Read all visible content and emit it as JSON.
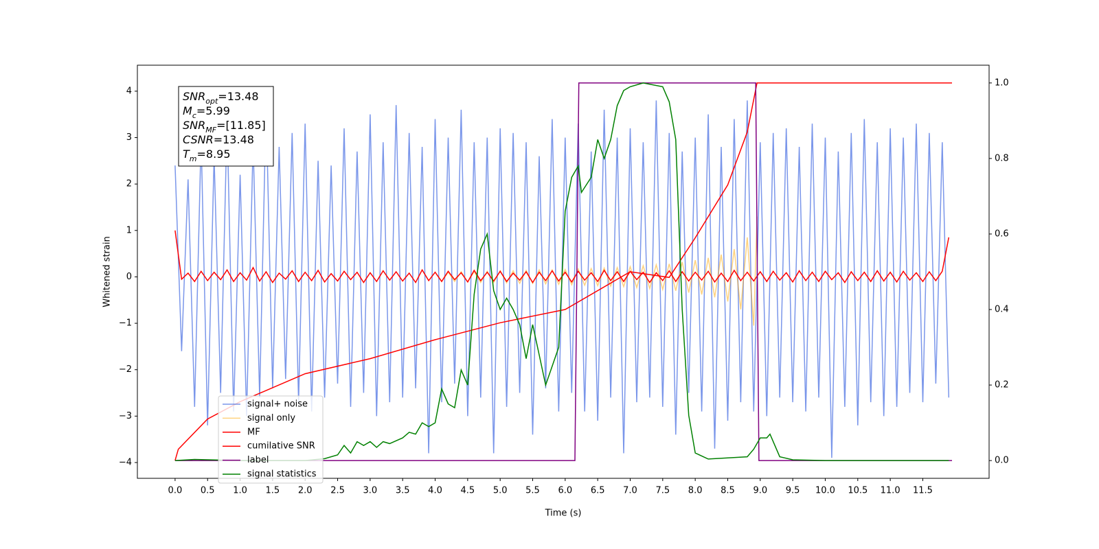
{
  "chart_data": {
    "type": "line",
    "xlabel": "Time (s)",
    "ylabel": "Whitened strain",
    "xlim": [
      -0.58,
      12.52
    ],
    "ylim": [
      -4.34,
      4.56
    ],
    "y2lim": [
      -0.047,
      1.047
    ],
    "xticks": [
      {
        "value": 0,
        "label": "0.0"
      },
      0.5,
      {
        "value": 1,
        "label": "1.0"
      },
      1.5,
      {
        "value": 2,
        "label": "2.0"
      },
      2.5,
      {
        "value": 3,
        "label": "3.0"
      },
      3.5,
      {
        "value": 4,
        "label": "4.0"
      },
      4.5,
      {
        "value": 5,
        "label": "5.0"
      },
      5.5,
      {
        "value": 6,
        "label": "6.0"
      },
      6.5,
      {
        "value": 7,
        "label": "7.0"
      },
      7.5,
      {
        "value": 8,
        "label": "8.0"
      },
      8.5,
      {
        "value": 9,
        "label": "9.0"
      },
      9.5,
      {
        "value": 10,
        "label": "10.0"
      },
      10.5,
      {
        "value": 11,
        "label": "11.0"
      },
      11.5
    ],
    "yticks": [
      {
        "value": -4,
        "label": "−4"
      },
      {
        "value": -3,
        "label": "−3"
      },
      {
        "value": -2,
        "label": "−2"
      },
      {
        "value": -1,
        "label": "−1"
      },
      0,
      1,
      2,
      3,
      4
    ],
    "y2ticks": [
      {
        "value": 0,
        "label": "0.0"
      },
      0.2,
      0.4,
      0.6,
      0.8,
      {
        "value": 1,
        "label": "1.0"
      }
    ],
    "legend": "best",
    "annotations": [
      {
        "symbol": "SNR",
        "subscript": "opt",
        "text": "=13.48"
      },
      {
        "symbol": "M",
        "subscript": "c",
        "text": "=5.99"
      },
      {
        "symbol": "SNR",
        "subscript": "MF",
        "text": "=[11.85]"
      },
      {
        "symbol": "CSNR",
        "text": "=13.48"
      },
      {
        "symbol": "T",
        "subscript": "m",
        "text": "=8.95"
      }
    ],
    "x": [
      0.0,
      0.1,
      0.2,
      0.3,
      0.4,
      0.5,
      0.6,
      0.7,
      0.8,
      0.9,
      1.0,
      1.1,
      1.2,
      1.3,
      1.4,
      1.5,
      1.6,
      1.7,
      1.8,
      1.9,
      2.0,
      2.1,
      2.2,
      2.3,
      2.4,
      2.5,
      2.6,
      2.7,
      2.8,
      2.9,
      3.0,
      3.1,
      3.2,
      3.3,
      3.4,
      3.5,
      3.6,
      3.7,
      3.8,
      3.9,
      4.0,
      4.1,
      4.2,
      4.3,
      4.4,
      4.5,
      4.6,
      4.7,
      4.8,
      4.9,
      5.0,
      5.1,
      5.2,
      5.3,
      5.4,
      5.5,
      5.6,
      5.7,
      5.8,
      5.9,
      6.0,
      6.1,
      6.2,
      6.3,
      6.4,
      6.5,
      6.6,
      6.7,
      6.8,
      6.9,
      7.0,
      7.1,
      7.2,
      7.3,
      7.4,
      7.5,
      7.6,
      7.7,
      7.8,
      7.9,
      8.0,
      8.1,
      8.2,
      8.3,
      8.4,
      8.5,
      8.6,
      8.7,
      8.8,
      8.9,
      9.0,
      9.1,
      9.2,
      9.3,
      9.4,
      9.5,
      9.6,
      9.7,
      9.8,
      9.9,
      10.0,
      10.1,
      10.2,
      10.3,
      10.4,
      10.5,
      10.6,
      10.7,
      10.8,
      10.9,
      11.0,
      11.1,
      11.2,
      11.3,
      11.4,
      11.5,
      11.6,
      11.7,
      11.8,
      11.9
    ],
    "series": [
      {
        "name": "signal+ noise",
        "color": "#4169e1",
        "values": [
          2.4,
          -1.6,
          2.1,
          -2.8,
          3.0,
          -3.2,
          2.6,
          -2.5,
          3.4,
          -2.9,
          2.2,
          -3.0,
          2.9,
          -2.6,
          3.7,
          -2.4,
          2.8,
          -2.2,
          3.1,
          -2.7,
          3.3,
          -2.9,
          2.5,
          -2.6,
          2.4,
          -2.3,
          3.2,
          -2.8,
          2.7,
          -2.5,
          3.5,
          -3.0,
          2.9,
          -2.7,
          3.7,
          -2.6,
          3.1,
          -2.4,
          2.8,
          -3.8,
          3.4,
          -2.7,
          3.0,
          -2.3,
          3.6,
          -3.0,
          2.9,
          -2.6,
          3.0,
          -3.8,
          3.2,
          -2.8,
          3.1,
          -2.5,
          2.9,
          -3.4,
          2.6,
          -2.4,
          3.4,
          -2.9,
          3.0,
          -2.5,
          3.3,
          -2.9,
          2.7,
          -3.1,
          3.6,
          -2.6,
          3.0,
          -3.8,
          3.2,
          -2.7,
          2.9,
          -2.6,
          3.8,
          -2.8,
          3.1,
          -3.4,
          2.7,
          -2.5,
          3.0,
          -2.9,
          3.5,
          -3.7,
          2.8,
          -3.1,
          3.4,
          -2.7,
          3.8,
          -2.9,
          2.9,
          -3.0,
          3.1,
          -2.6,
          3.2,
          -2.7,
          2.8,
          -2.9,
          3.3,
          -2.6,
          3.0,
          -3.9,
          2.7,
          -2.8,
          3.1,
          -3.2,
          3.4,
          -2.7,
          2.9,
          -3.0,
          3.2,
          -2.8,
          3.0,
          -2.5,
          3.3,
          -2.7,
          3.1,
          -2.3,
          2.9,
          -2.6
        ]
      },
      {
        "name": "signal only",
        "color": "#ffa500",
        "x": [
          4.0,
          4.1,
          4.2,
          4.3,
          4.4,
          4.5,
          4.6,
          4.7,
          4.8,
          4.9,
          5.0,
          5.1,
          5.2,
          5.3,
          5.4,
          5.5,
          5.6,
          5.7,
          5.8,
          5.9,
          6.0,
          6.1,
          6.2,
          6.3,
          6.4,
          6.5,
          6.6,
          6.7,
          6.8,
          6.9,
          7.0,
          7.1,
          7.2,
          7.3,
          7.4,
          7.5,
          7.6,
          7.7,
          7.8,
          7.9,
          8.0,
          8.1,
          8.2,
          8.3,
          8.4,
          8.5,
          8.6,
          8.7,
          8.8,
          8.9,
          8.95
        ],
        "values": [
          0.1,
          -0.1,
          0.1,
          -0.1,
          0.11,
          -0.11,
          0.11,
          -0.12,
          0.12,
          -0.12,
          0.13,
          -0.13,
          0.13,
          -0.14,
          0.14,
          -0.14,
          0.15,
          -0.15,
          0.15,
          -0.16,
          0.16,
          -0.17,
          0.17,
          -0.18,
          0.18,
          -0.19,
          0.19,
          -0.2,
          0.2,
          -0.21,
          0.22,
          -0.23,
          0.24,
          -0.25,
          0.26,
          -0.27,
          0.28,
          -0.3,
          0.32,
          -0.34,
          0.36,
          -0.38,
          0.41,
          -0.44,
          0.48,
          -0.53,
          0.6,
          -0.7,
          0.85,
          -1.05,
          1.3
        ]
      },
      {
        "name": "MF",
        "color": "#ff0000",
        "values": [
          1.0,
          -0.05,
          0.08,
          -0.1,
          0.12,
          -0.08,
          0.1,
          -0.06,
          0.15,
          -0.1,
          0.09,
          -0.07,
          0.2,
          -0.09,
          0.11,
          -0.12,
          0.08,
          -0.05,
          0.13,
          -0.1,
          0.1,
          -0.08,
          0.14,
          -0.11,
          0.07,
          -0.09,
          0.12,
          -0.06,
          0.1,
          -0.12,
          0.09,
          -0.1,
          0.13,
          -0.07,
          0.11,
          -0.09,
          0.08,
          -0.12,
          0.15,
          -0.08,
          0.1,
          -0.1,
          0.12,
          -0.06,
          0.09,
          -0.11,
          0.14,
          -0.08,
          0.1,
          -0.09,
          0.12,
          -0.1,
          0.08,
          -0.07,
          0.11,
          -0.12,
          0.1,
          -0.08,
          0.13,
          -0.09,
          0.1,
          -0.11,
          0.12,
          -0.07,
          0.09,
          -0.1,
          0.14,
          -0.08,
          0.11,
          -0.1,
          0.12,
          -0.06,
          0.1,
          -0.12,
          0.09,
          -0.08,
          0.13,
          -0.1,
          0.11,
          -0.09,
          0.1,
          -0.07,
          0.12,
          -0.11,
          0.08,
          -0.1,
          0.14,
          -0.08,
          0.1,
          -0.09,
          0.11,
          -0.1,
          0.12,
          -0.07,
          0.09,
          -0.11,
          0.13,
          -0.08,
          0.1,
          -0.1,
          0.12,
          -0.06,
          0.09,
          -0.12,
          0.11,
          -0.08,
          0.1,
          -0.1,
          0.13,
          -0.09,
          0.1,
          -0.11,
          0.12,
          -0.07,
          0.09,
          -0.1,
          0.11,
          -0.08,
          0.12,
          0.85
        ]
      },
      {
        "name": "cumilative SNR",
        "color": "#ff0000",
        "axis": "y2",
        "x": [
          0.0,
          0.05,
          0.5,
          1.0,
          2.0,
          3.0,
          4.0,
          5.0,
          6.0,
          7.0,
          7.6,
          8.0,
          8.5,
          8.8,
          8.95,
          9.0,
          11.95
        ],
        "values": [
          0.0,
          0.03,
          0.11,
          0.156,
          0.23,
          0.27,
          0.32,
          0.365,
          0.4,
          0.5,
          0.485,
          0.59,
          0.73,
          0.87,
          1.0,
          1.0,
          1.0
        ]
      },
      {
        "name": "label",
        "color": "#800080",
        "axis": "y2",
        "x": [
          0.0,
          6.15,
          6.21,
          8.93,
          8.98,
          11.95
        ],
        "values": [
          0,
          0,
          1,
          1,
          0,
          0
        ]
      },
      {
        "name": "signal statistics",
        "color": "#008000",
        "axis": "y2",
        "x": [
          0.0,
          0.3,
          1.0,
          2.0,
          2.3,
          2.5,
          2.6,
          2.7,
          2.8,
          2.9,
          3.0,
          3.1,
          3.2,
          3.3,
          3.5,
          3.6,
          3.7,
          3.8,
          3.9,
          4.0,
          4.1,
          4.2,
          4.3,
          4.4,
          4.5,
          4.6,
          4.7,
          4.8,
          4.9,
          5.0,
          5.1,
          5.2,
          5.3,
          5.4,
          5.5,
          5.6,
          5.7,
          5.8,
          5.9,
          6.0,
          6.1,
          6.2,
          6.25,
          6.4,
          6.5,
          6.6,
          6.7,
          6.8,
          6.9,
          7.0,
          7.2,
          7.5,
          7.6,
          7.7,
          7.8,
          7.9,
          8.0,
          8.2,
          8.5,
          8.8,
          8.9,
          9.0,
          9.1,
          9.15,
          9.3,
          9.5,
          10.0,
          11.0,
          11.9
        ],
        "values": [
          0,
          0.003,
          0,
          0,
          0.005,
          0.015,
          0.04,
          0.02,
          0.05,
          0.04,
          0.05,
          0.035,
          0.05,
          0.045,
          0.06,
          0.075,
          0.07,
          0.1,
          0.09,
          0.1,
          0.19,
          0.15,
          0.14,
          0.24,
          0.2,
          0.44,
          0.56,
          0.6,
          0.45,
          0.4,
          0.43,
          0.4,
          0.36,
          0.27,
          0.36,
          0.28,
          0.2,
          0.25,
          0.3,
          0.66,
          0.75,
          0.78,
          0.71,
          0.75,
          0.85,
          0.8,
          0.85,
          0.94,
          0.98,
          0.99,
          1.0,
          0.99,
          0.95,
          0.85,
          0.4,
          0.12,
          0.02,
          0.004,
          0.007,
          0.01,
          0.03,
          0.06,
          0.06,
          0.07,
          0.01,
          0.002,
          0,
          0,
          0
        ]
      }
    ]
  }
}
